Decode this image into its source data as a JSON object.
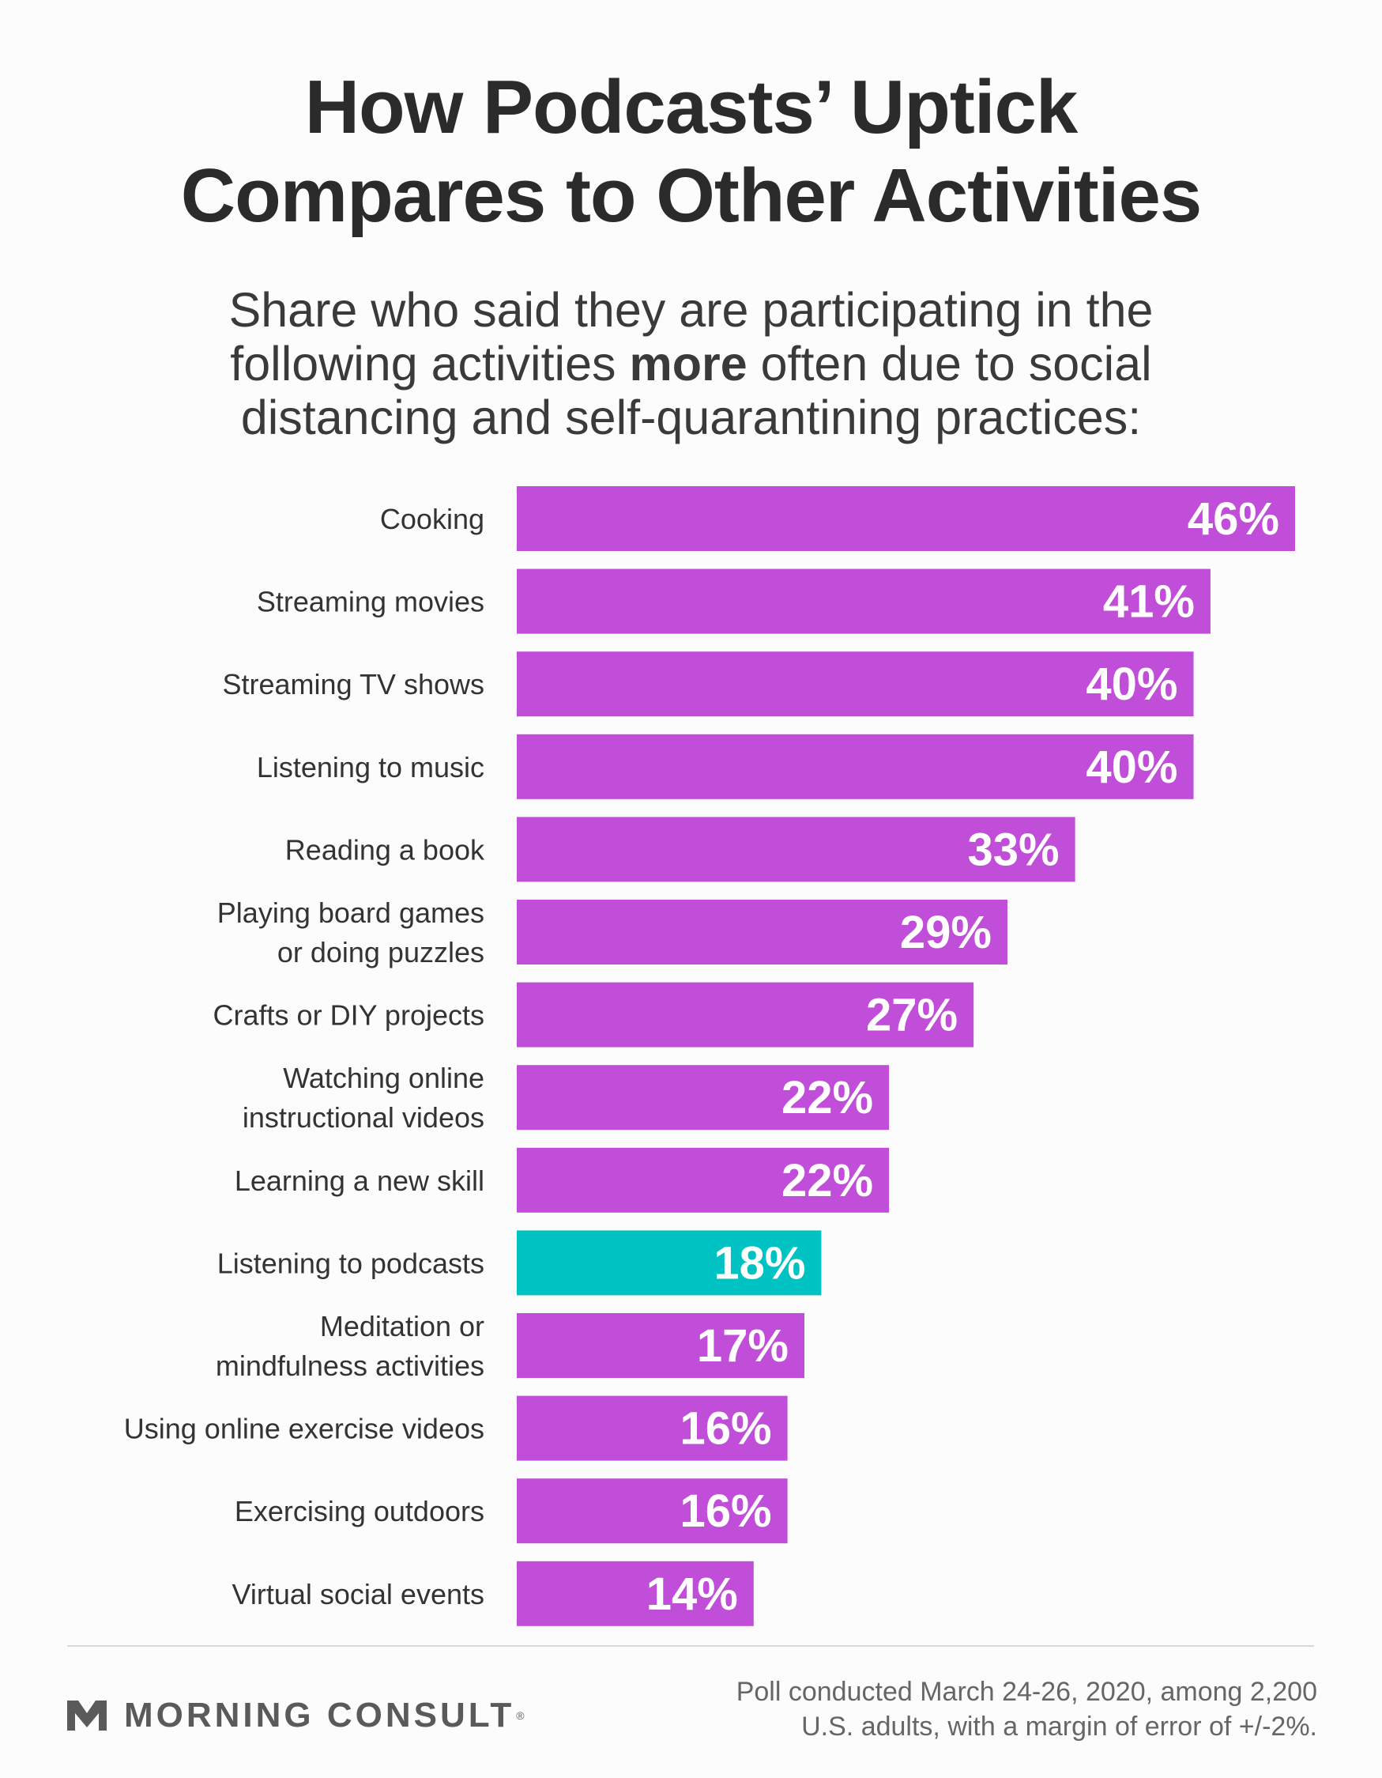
{
  "header": {
    "title_line1": "How Podcasts’ Uptick",
    "title_line2": "Compares to Other Activities",
    "subtitle_line1": "Share who said they are participating in the",
    "subtitle_line2_pre": "following activities ",
    "subtitle_line2_bold": "more",
    "subtitle_line2_post": " often due to social",
    "subtitle_line3": "distancing and self-quarantining practices:"
  },
  "chart_data": {
    "type": "bar",
    "orientation": "horizontal",
    "title": "How Podcasts’ Uptick Compares to Other Activities",
    "xlabel": "",
    "ylabel": "",
    "value_suffix": "%",
    "xlim": [
      0,
      46
    ],
    "categories": [
      [
        "Cooking"
      ],
      [
        "Streaming movies"
      ],
      [
        "Streaming TV shows"
      ],
      [
        "Listening to music"
      ],
      [
        "Reading a book"
      ],
      [
        "Playing board games",
        "or doing puzzles"
      ],
      [
        "Crafts or DIY projects"
      ],
      [
        "Watching online",
        "instructional videos"
      ],
      [
        "Learning a new skill"
      ],
      [
        "Listening to podcasts"
      ],
      [
        "Meditation or",
        "mindfulness activities"
      ],
      [
        "Using online exercise videos"
      ],
      [
        "Exercising outdoors"
      ],
      [
        "Virtual social events"
      ]
    ],
    "values": [
      46,
      41,
      40,
      40,
      33,
      29,
      27,
      22,
      22,
      18,
      17,
      16,
      16,
      14
    ],
    "highlight_index": 9,
    "colors": {
      "default": "#c04ed8",
      "highlight": "#00c2c2"
    }
  },
  "footer": {
    "brand": "MORNING CONSULT",
    "reg_mark": "®",
    "note_line1": "Poll conducted March 24-26, 2020, among 2,200",
    "note_line2": "U.S. adults, with a margin of error of +/-2%."
  }
}
